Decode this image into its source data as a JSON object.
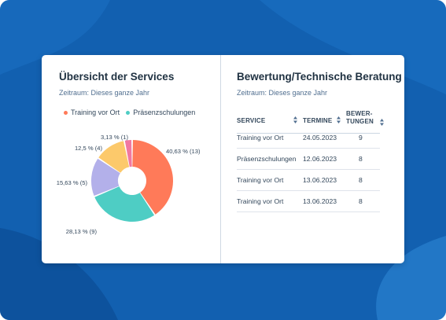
{
  "colors": {
    "background": "#1260b0",
    "card": "#ffffff",
    "training": "#ff7a59",
    "praesenz": "#4ecdc4",
    "purple": "#b3b0ea",
    "yellow": "#fcc96b",
    "pink": "#f178a0"
  },
  "left_panel": {
    "title": "Übersicht der Services",
    "period": "Zeitraum: Dieses ganze Jahr",
    "legend": [
      {
        "label": "Training vor Ort",
        "color": "#ff7a59"
      },
      {
        "label": "Präsenzschulungen",
        "color": "#4ecdc4"
      }
    ]
  },
  "chart_data": {
    "type": "pie",
    "donut": true,
    "slices": [
      {
        "value": 13,
        "percent": 40.63,
        "label": "40,63 % (13)",
        "color": "#ff7a59"
      },
      {
        "value": 9,
        "percent": 28.13,
        "label": "28,13 % (9)",
        "color": "#4ecdc4"
      },
      {
        "value": 5,
        "percent": 15.63,
        "label": "15,63 % (5)",
        "color": "#b3b0ea"
      },
      {
        "value": 4,
        "percent": 12.5,
        "label": "12,5 % (4)",
        "color": "#fcc96b"
      },
      {
        "value": 1,
        "percent": 3.13,
        "label": "3,13 % (1)",
        "color": "#f178a0"
      }
    ],
    "legend": [
      "Training vor Ort",
      "Präsenzschulungen"
    ]
  },
  "right_panel": {
    "title": "Bewertung/Technische Beratung",
    "period": "Zeitraum: Dieses ganze Jahr",
    "columns": [
      "SERVICE",
      "TERMINE",
      "BEWER-\nTUNGEN"
    ],
    "col_service": "SERVICE",
    "col_termine": "TERMINE",
    "col_bewertungen_1": "BEWER-",
    "col_bewertungen_2": "TUNGEN",
    "rows": [
      {
        "service": "Training vor Ort",
        "termin": "24.05.2023",
        "bewertung": "9"
      },
      {
        "service": "Präsenzschulungen",
        "termin": "12.06.2023",
        "bewertung": "8"
      },
      {
        "service": "Training vor Ort",
        "termin": "13.06.2023",
        "bewertung": "8"
      },
      {
        "service": "Training vor Ort",
        "termin": "13.06.2023",
        "bewertung": "8"
      }
    ]
  }
}
